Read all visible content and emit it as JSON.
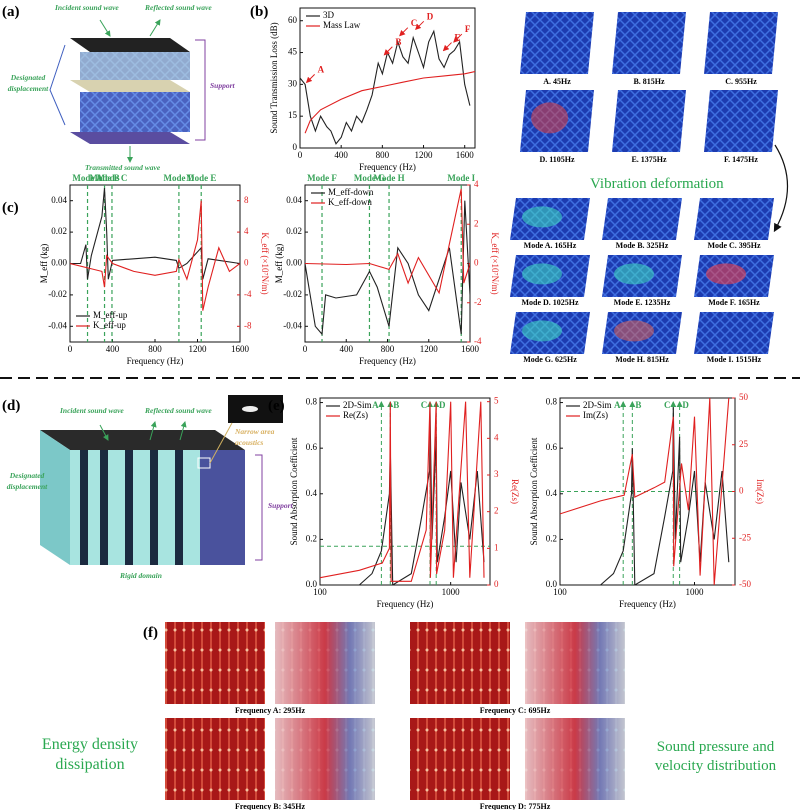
{
  "panels": {
    "a": {
      "label": "(a)",
      "incident": "Incident sound wave",
      "reflected": "Reflected sound wave",
      "displacement": "Designated displacement",
      "support": "Support",
      "transmitted": "Transmitted sound wave"
    },
    "b": {
      "label": "(b)",
      "chart": {
        "type": "line",
        "xlabel": "Frequency (Hz)",
        "ylabel": "Sound Transmission Loss (dB)",
        "xlim": [
          0,
          1700
        ],
        "ylim": [
          0,
          66
        ],
        "xticks": [
          0,
          400,
          800,
          1200,
          1600
        ],
        "yticks": [
          0,
          15,
          30,
          45,
          60
        ],
        "legend": "upper left",
        "series": [
          {
            "name": "3D",
            "color": "#222222",
            "x": [
              0,
              50,
              100,
              150,
              200,
              260,
              300,
              350,
              400,
              450,
              500,
              550,
              600,
              650,
              700,
              760,
              800,
              850,
              900,
              950,
              1000,
              1050,
              1100,
              1150,
              1200,
              1250,
              1300,
              1350,
              1400,
              1450,
              1500,
              1550,
              1600,
              1650
            ],
            "values": [
              33,
              30,
              15,
              8,
              15,
              10,
              8,
              2,
              5,
              12,
              8,
              15,
              12,
              18,
              25,
              40,
              35,
              45,
              40,
              50,
              43,
              40,
              52,
              45,
              38,
              50,
              55,
              42,
              38,
              44,
              46,
              50,
              30,
              20
            ]
          },
          {
            "name": "Mass Law",
            "color": "#e02020",
            "x": [
              50,
              100,
              200,
              400,
              600,
              800,
              1000,
              1200,
              1400,
              1600,
              1700
            ],
            "values": [
              7,
              13,
              18,
              23,
              27,
              29,
              31,
              33,
              34,
              35,
              36
            ]
          }
        ],
        "annotations": [
          {
            "text": "A",
            "x": 45,
            "y": 30
          },
          {
            "text": "B",
            "x": 800,
            "y": 43
          },
          {
            "text": "C",
            "x": 950,
            "y": 52
          },
          {
            "text": "D",
            "x": 1105,
            "y": 55
          },
          {
            "text": "E",
            "x": 1375,
            "y": 45
          },
          {
            "text": "F",
            "x": 1475,
            "y": 49
          }
        ]
      },
      "images": [
        "A. 45Hz",
        "B. 815Hz",
        "C. 955Hz",
        "D. 1105Hz",
        "E. 1375Hz",
        "F. 1475Hz"
      ],
      "note": "Vibration deformation"
    },
    "c": {
      "label": "(c)",
      "charts": [
        {
          "type": "line",
          "xlabel": "Frequency (Hz)",
          "ylabel": "M_eff (kg)",
          "y2label": "K_eff (×10⁷N/m)",
          "xlim": [
            0,
            1600
          ],
          "ylim": [
            -0.05,
            0.05
          ],
          "y2lim": [
            -10,
            10
          ],
          "xticks": [
            0,
            400,
            800,
            1200,
            1600
          ],
          "yticks": [
            -0.04,
            -0.02,
            {
              "value": 0,
              "label": "0.00"
            },
            0.02,
            0.04
          ],
          "y2ticks": [
            -8,
            -4,
            0,
            4,
            8
          ],
          "legend": "lower left",
          "series": [
            {
              "name": "M_eff-up",
              "color": "#222222",
              "x": [
                0,
                100,
                150,
                165,
                200,
                300,
                325,
                345,
                360,
                400,
                600,
                800,
                1000,
                1025,
                1100,
                1235,
                1250,
                1300,
                1600
              ],
              "values": [
                0,
                0,
                0.012,
                -0.01,
                0.005,
                0.03,
                0.048,
                0.02,
                -0.01,
                0.002,
                0.003,
                0.004,
                0.002,
                -0.003,
                0,
                0.01,
                -0.01,
                0.003,
                0
              ]
            },
            {
              "name": "K_eff-up",
              "color": "#e02020",
              "axis": "y2",
              "x": [
                0,
                300,
                325,
                345,
                400,
                600,
                800,
                1000,
                1025,
                1100,
                1200,
                1235,
                1250,
                1300,
                1400,
                1500,
                1600
              ],
              "values": [
                0,
                -1,
                -3,
                1,
                0,
                -1,
                -1.5,
                -1,
                0.5,
                -2,
                3,
                8,
                -6,
                -3,
                2,
                -1,
                0
              ]
            }
          ],
          "modes": [
            {
              "label": "Mode A",
              "x": 165
            },
            {
              "label": "Mode B",
              "x": 325
            },
            {
              "label": "Mode C",
              "x": 395
            },
            {
              "label": "Mode D",
              "x": 1025
            },
            {
              "label": "Mode E",
              "x": 1235
            }
          ]
        },
        {
          "type": "line",
          "xlabel": "Frequency (Hz)",
          "ylabel": "M_eff (kg)",
          "y2label": "K_eff (×10⁷N/m)",
          "xlim": [
            0,
            1600
          ],
          "ylim": [
            -0.05,
            0.05
          ],
          "y2lim": [
            -4,
            4
          ],
          "xticks": [
            0,
            400,
            800,
            1200,
            1600
          ],
          "yticks": [
            -0.04,
            -0.02,
            {
              "value": 0,
              "label": "0.00"
            },
            0.02,
            0.04
          ],
          "y2ticks": [
            -4,
            -2,
            0,
            2,
            4
          ],
          "legend": "upper left",
          "series": [
            {
              "name": "M_eff-down",
              "color": "#222222",
              "x": [
                0,
                100,
                165,
                200,
                300,
                500,
                625,
                700,
                815,
                900,
                1000,
                1100,
                1200,
                1300,
                1400,
                1515,
                1550,
                1600
              ],
              "values": [
                0,
                -0.04,
                -0.045,
                -0.02,
                -0.022,
                -0.02,
                -0.005,
                -0.015,
                -0.04,
                0.01,
                0,
                -0.02,
                -0.03,
                -0.01,
                0.01,
                -0.045,
                0.04,
                -0.02
              ]
            },
            {
              "name": "K_eff-down",
              "color": "#e02020",
              "axis": "y2",
              "x": [
                0,
                400,
                625,
                815,
                900,
                1000,
                1100,
                1300,
                1400,
                1515,
                1540,
                1600
              ],
              "values": [
                0,
                -0.05,
                0,
                -0.3,
                0.5,
                -1,
                0.3,
                -1.5,
                1,
                3.8,
                -1,
                0
              ]
            }
          ],
          "modes": [
            {
              "label": "Mode F",
              "x": 165
            },
            {
              "label": "Mode G",
              "x": 625
            },
            {
              "label": "Mode H",
              "x": 815
            },
            {
              "label": "Mode I",
              "x": 1515
            }
          ]
        }
      ],
      "images": [
        "Mode A. 165Hz",
        "Mode B. 325Hz",
        "Mode C. 395Hz",
        "Mode D. 1025Hz",
        "Mode E. 1235Hz",
        "Mode F. 165Hz",
        "Mode G. 625Hz",
        "Mode H. 815Hz",
        "Mode I. 1515Hz"
      ]
    },
    "d": {
      "label": "(d)",
      "incident": "Incident sound wave",
      "reflected": "Reflected sound wave",
      "narrow": "Narrow area acoustics",
      "displacement": "Designated displacement",
      "support": "Support",
      "rigid": "Rigid domain"
    },
    "e": {
      "label": "(e)",
      "charts": [
        {
          "type": "line",
          "xlabel": "Frequency (Hz)",
          "ylabel": "Sound Absorption Coefficient",
          "y2label": "Re(Zs)",
          "xscale": "log",
          "xlim": [
            100,
            2000
          ],
          "ylim": [
            0,
            0.82
          ],
          "y2lim": [
            0,
            5.1
          ],
          "xticks": [
            100,
            1000
          ],
          "yticks": [
            {
              "value": 0,
              "label": "0.0"
            },
            0.2,
            0.4,
            0.6,
            0.8
          ],
          "y2ticks": [
            0,
            1,
            2,
            3,
            4,
            5
          ],
          "legend": "upper left",
          "hline": 0.17,
          "series": [
            {
              "name": "2D-Sim",
              "color": "#222222",
              "x": [
                200,
                250,
                295,
                340,
                345,
                360,
                500,
                600,
                690,
                695,
                720,
                775,
                790,
                900,
                1000,
                1100,
                1200,
                1400,
                1600,
                1800
              ],
              "values": [
                0,
                0.05,
                0.15,
                0.4,
                0.6,
                0,
                0.05,
                0.3,
                0.5,
                0.78,
                0.2,
                0.65,
                0.1,
                0.3,
                0.5,
                0.1,
                0.45,
                0.2,
                0.5,
                0.1
              ]
            },
            {
              "name": "Re(Zs)",
              "color": "#e02020",
              "axis": "y2",
              "x": [
                100,
                200,
                300,
                340,
                345,
                350,
                500,
                650,
                695,
                700,
                775,
                780,
                900,
                1000,
                1050,
                1300,
                1400,
                1700,
                1800
              ],
              "values": [
                0.2,
                0.4,
                0.6,
                1,
                5,
                0.1,
                0.1,
                1.5,
                5,
                0.2,
                5,
                0.3,
                1.5,
                5,
                0.2,
                5,
                0.2,
                5,
                0.2
              ]
            }
          ],
          "markers": [
            {
              "label": "A",
              "x": 295
            },
            {
              "label": "B",
              "x": 345
            },
            {
              "label": "C",
              "x": 695
            },
            {
              "label": "D",
              "x": 775
            }
          ]
        },
        {
          "type": "line",
          "xlabel": "Frequency (Hz)",
          "ylabel": "Sound Absorption Coefficient",
          "y2label": "Im(Zs)",
          "xscale": "log",
          "xlim": [
            100,
            2000
          ],
          "ylim": [
            0,
            0.82
          ],
          "y2lim": [
            -50,
            50
          ],
          "xticks": [
            100,
            1000
          ],
          "yticks": [
            {
              "value": 0,
              "label": "0.0"
            },
            0.2,
            0.4,
            0.6,
            0.8
          ],
          "y2ticks": [
            -50,
            -25,
            0,
            25,
            50
          ],
          "legend": "upper left",
          "hline": 0.41,
          "series": [
            {
              "name": "2D-Sim",
              "color": "#222222",
              "x": [
                200,
                250,
                295,
                340,
                345,
                360,
                500,
                600,
                690,
                695,
                720,
                775,
                790,
                900,
                1000,
                1100,
                1200,
                1400,
                1600,
                1800
              ],
              "values": [
                0,
                0.05,
                0.15,
                0.4,
                0.6,
                0,
                0.05,
                0.3,
                0.5,
                0.78,
                0.2,
                0.65,
                0.1,
                0.3,
                0.5,
                0.1,
                0.45,
                0.2,
                0.5,
                0.1
              ]
            },
            {
              "name": "Im(Zs)",
              "color": "#e02020",
              "axis": "y2",
              "x": [
                100,
                200,
                300,
                345,
                360,
                500,
                600,
                695,
                700,
                800,
                900,
                1000,
                1100,
                1300,
                1400,
                1800
              ],
              "values": [
                -12,
                -5,
                -2,
                20,
                -3,
                2,
                5,
                40,
                -40,
                15,
                -10,
                40,
                -45,
                50,
                -50,
                50
              ]
            }
          ],
          "markers": [
            {
              "label": "A",
              "x": 295
            },
            {
              "label": "B",
              "x": 345
            },
            {
              "label": "C",
              "x": 695
            },
            {
              "label": "D",
              "x": 775
            }
          ]
        }
      ]
    },
    "f": {
      "label": "(f)",
      "captions": [
        "Frequency A: 295Hz",
        "Frequency C: 695Hz",
        "Frequency B: 345Hz",
        "Frequency D: 775Hz"
      ],
      "left_note": "Energy density dissipation",
      "right_note": "Sound pressure and velocity distribution"
    }
  }
}
